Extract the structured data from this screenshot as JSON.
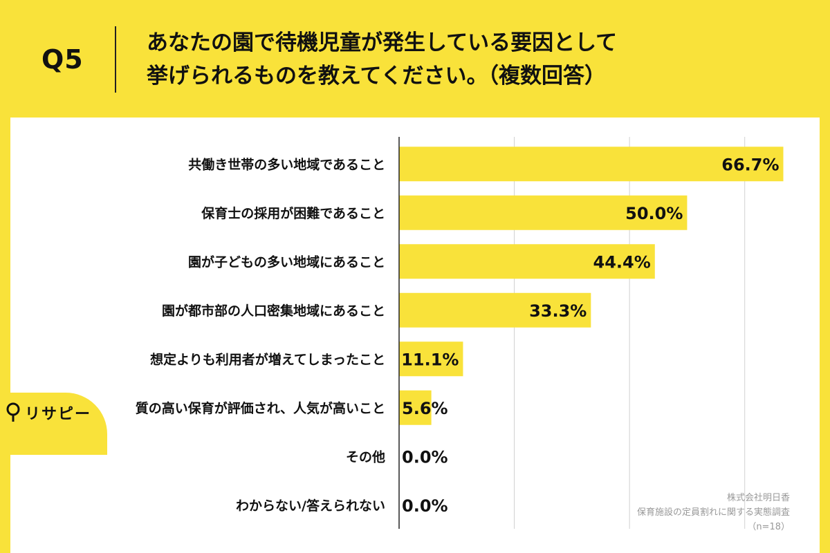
{
  "question": {
    "number": "Q5",
    "line1": "あなたの園で待機児童が発生している要因として",
    "line2": "挙げられるものを教えてください。（複数回答）"
  },
  "chart_data": {
    "type": "bar",
    "orientation": "horizontal",
    "categories": [
      "共働き世帯の多い地域であること",
      "保育士の採用が困難であること",
      "園が子どもの多い地域にあること",
      "園が都市部の人口密集地域にあること",
      "想定よりも利用者が増えてしまったこと",
      "質の高い保育が評価され、人気が高いこと",
      "その他",
      "わからない/答えられない"
    ],
    "values": [
      66.7,
      50.0,
      44.4,
      33.3,
      11.1,
      5.6,
      0.0,
      0.0
    ],
    "value_labels": [
      "66.7%",
      "50.0%",
      "44.4%",
      "33.3%",
      "11.1%",
      "5.6%",
      "0.0%",
      "0.0%"
    ],
    "xlim": [
      0,
      70
    ],
    "grid": true,
    "bar_color": "#f9e23a"
  },
  "source": {
    "company": "株式会社明日香",
    "survey": "保育施設の定員割れに関する実態調査",
    "sample": "（n=18）"
  },
  "logo": {
    "text": "リサピー",
    "icon": "pin-icon"
  },
  "colors": {
    "background": "#f9e23a",
    "panel": "#ffffff",
    "bar": "#f9e23a"
  }
}
